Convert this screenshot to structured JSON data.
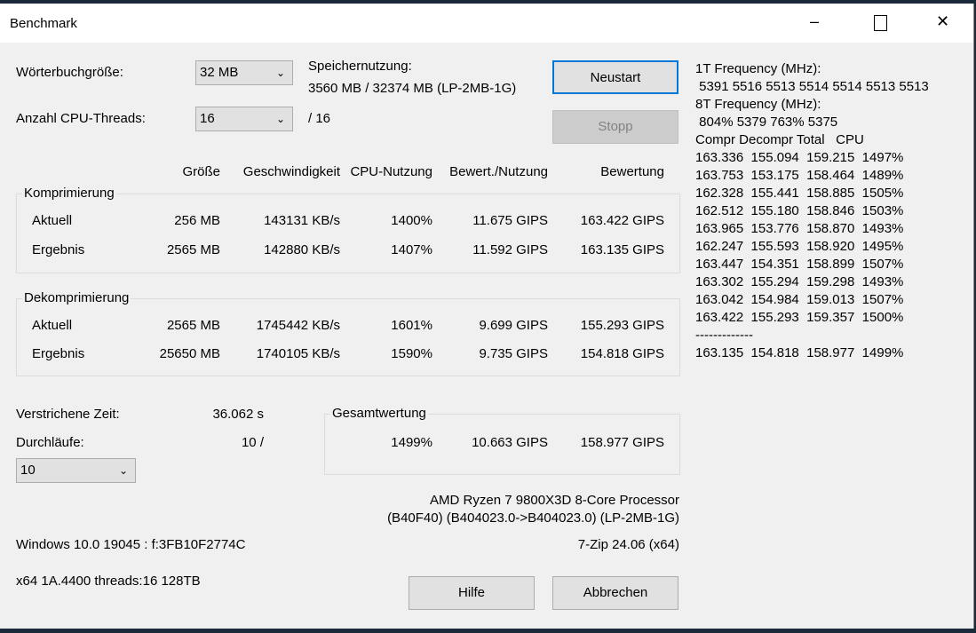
{
  "window": {
    "title": "Benchmark",
    "minimize": "–",
    "maximize": "☐",
    "close": "✕"
  },
  "settings": {
    "dict_label": "Wörterbuchgröße:",
    "dict_value": "32 MB",
    "threads_label": "Anzahl CPU-Threads:",
    "threads_value": "16",
    "threads_max": "/ 16",
    "mem_label": "Speichernutzung:",
    "mem_value": "3560 MB / 32374 MB (LP-2MB-1G)"
  },
  "buttons": {
    "restart": "Neustart",
    "stop": "Stopp",
    "help": "Hilfe",
    "cancel": "Abbrechen"
  },
  "columns": [
    "Größe",
    "Geschwindigkeit",
    "CPU-Nutzung",
    "Bewert./Nutzung",
    "Bewertung"
  ],
  "compression": {
    "title": "Komprimierung",
    "rows": [
      [
        "Aktuell",
        "256 MB",
        "143131 KB/s",
        "1400%",
        "11.675 GIPS",
        "163.422 GIPS"
      ],
      [
        "Ergebnis",
        "2565 MB",
        "142880 KB/s",
        "1407%",
        "11.592 GIPS",
        "163.135 GIPS"
      ]
    ]
  },
  "decompression": {
    "title": "Dekomprimierung",
    "rows": [
      [
        "Aktuell",
        "2565 MB",
        "1745442 KB/s",
        "1601%",
        "9.699 GIPS",
        "155.293 GIPS"
      ],
      [
        "Ergebnis",
        "25650 MB",
        "1740105 KB/s",
        "1590%",
        "9.735 GIPS",
        "154.818 GIPS"
      ]
    ]
  },
  "elapsed": {
    "label": "Verstrichene Zeit:",
    "value": "36.062 s"
  },
  "passes": {
    "label": "Durchläufe:",
    "value": "10 /",
    "select": "10"
  },
  "total": {
    "title": "Gesamtwertung",
    "cpu": "1499%",
    "rating_usage": "10.663 GIPS",
    "rating": "158.977 GIPS"
  },
  "cpu": {
    "name": "AMD Ryzen 7 9800X3D 8-Core Processor",
    "ids": "(B40F40) (B404023.0->B404023.0) (LP-2MB-1G)"
  },
  "os": "Windows 10.0 19045  : f:3FB10F2774C",
  "version": "7-Zip 24.06 (x64)",
  "arch": "x64 1A.4400 threads:16 128TB",
  "log": {
    "lines": [
      "1T Frequency (MHz):",
      " 5391 5516 5513 5514 5514 5513 5513",
      "8T Frequency (MHz):",
      " 804% 5379 763% 5375",
      "Compr Decompr Total   CPU",
      "163.336  155.094  159.215  1497%",
      "163.753  153.175  158.464  1489%",
      "162.328  155.441  158.885  1505%",
      "162.512  155.180  158.846  1503%",
      "163.965  153.776  158.870  1493%",
      "162.247  155.593  158.920  1495%",
      "163.447  154.351  158.899  1507%",
      "163.302  155.294  159.298  1493%",
      "163.042  154.984  159.013  1507%",
      "163.422  155.293  159.357  1500%",
      "-------------",
      "163.135  154.818  158.977  1499%"
    ]
  }
}
